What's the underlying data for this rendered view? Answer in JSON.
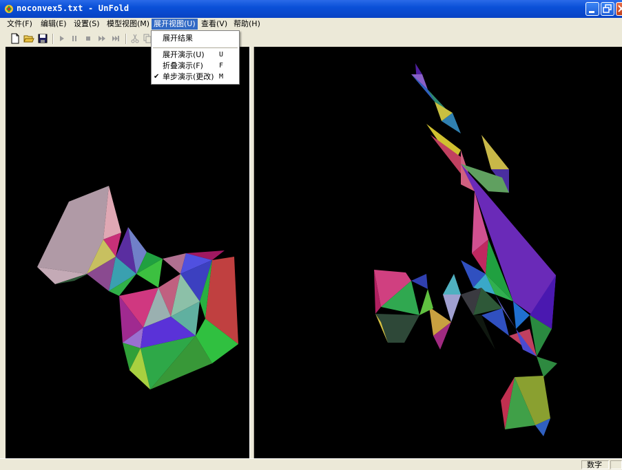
{
  "window": {
    "title": "noconvex5.txt - UnFold"
  },
  "menu": {
    "items": [
      {
        "label": "文件(F)"
      },
      {
        "label": "编辑(E)"
      },
      {
        "label": "设置(S)"
      },
      {
        "label": "模型视图(M)"
      },
      {
        "label": "展开视图(U)"
      },
      {
        "label": "查看(V)"
      },
      {
        "label": "帮助(H)"
      }
    ],
    "active_index": 4
  },
  "dropdown": {
    "items": [
      {
        "label": "展开结果",
        "shortcut": "",
        "checked": false
      },
      {
        "label": "展开演示(U)",
        "shortcut": "U",
        "checked": false
      },
      {
        "label": "折叠演示(F)",
        "shortcut": "F",
        "checked": false
      },
      {
        "label": "单步演示(更改)",
        "shortcut": "M",
        "checked": true
      }
    ],
    "check_glyph": "✔"
  },
  "toolbar": {
    "buttons": [
      "new-file-icon",
      "open-folder-icon",
      "save-disk-icon",
      "play-icon",
      "pause-icon",
      "stop-icon",
      "fast-forward-icon",
      "skip-end-icon",
      "cut-icon",
      "copy-icon"
    ]
  },
  "statusbar": {
    "mode": "数字"
  },
  "colors": {
    "titlebar": "#0a50d8",
    "menu_highlight": "#316ac5",
    "viewport_bg": "#000000"
  }
}
